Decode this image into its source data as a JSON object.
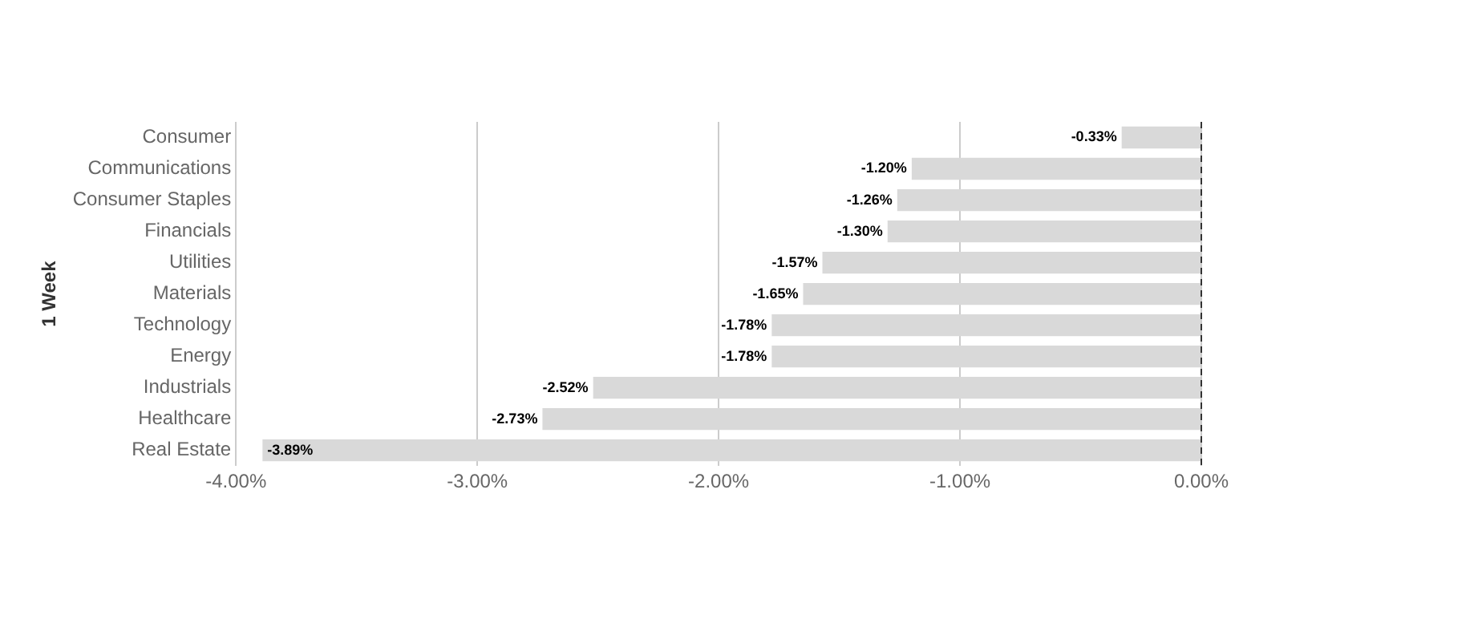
{
  "chart_data": {
    "type": "bar",
    "orientation": "horizontal",
    "ylabel": "1 Week",
    "categories": [
      "Consumer",
      "Communications",
      "Consumer Staples",
      "Financials",
      "Utilities",
      "Materials",
      "Technology",
      "Energy",
      "Industrials",
      "Healthcare",
      "Real Estate"
    ],
    "values": [
      -0.33,
      -1.2,
      -1.26,
      -1.3,
      -1.57,
      -1.65,
      -1.78,
      -1.78,
      -2.52,
      -2.73,
      -3.89
    ],
    "value_labels": [
      "-0.33%",
      "-1.20%",
      "-1.26%",
      "-1.30%",
      "-1.57%",
      "-1.65%",
      "-1.78%",
      "-1.78%",
      "-2.52%",
      "-2.73%",
      "-3.89%"
    ],
    "color": "#d9d9d9",
    "xlim": [
      -4,
      0
    ],
    "xticks": [
      {
        "value": -4,
        "label": "-4.00%"
      },
      {
        "value": -3,
        "label": "-3.00%"
      },
      {
        "value": -2,
        "label": "-2.00%"
      },
      {
        "value": -1,
        "label": "-1.00%"
      },
      {
        "value": 0,
        "label": "0.00%"
      }
    ],
    "grid": "x",
    "ref_lines": [
      {
        "axis": "x",
        "value": 0,
        "color": "#333333",
        "line_style": "dashed"
      }
    ],
    "legend": false
  }
}
